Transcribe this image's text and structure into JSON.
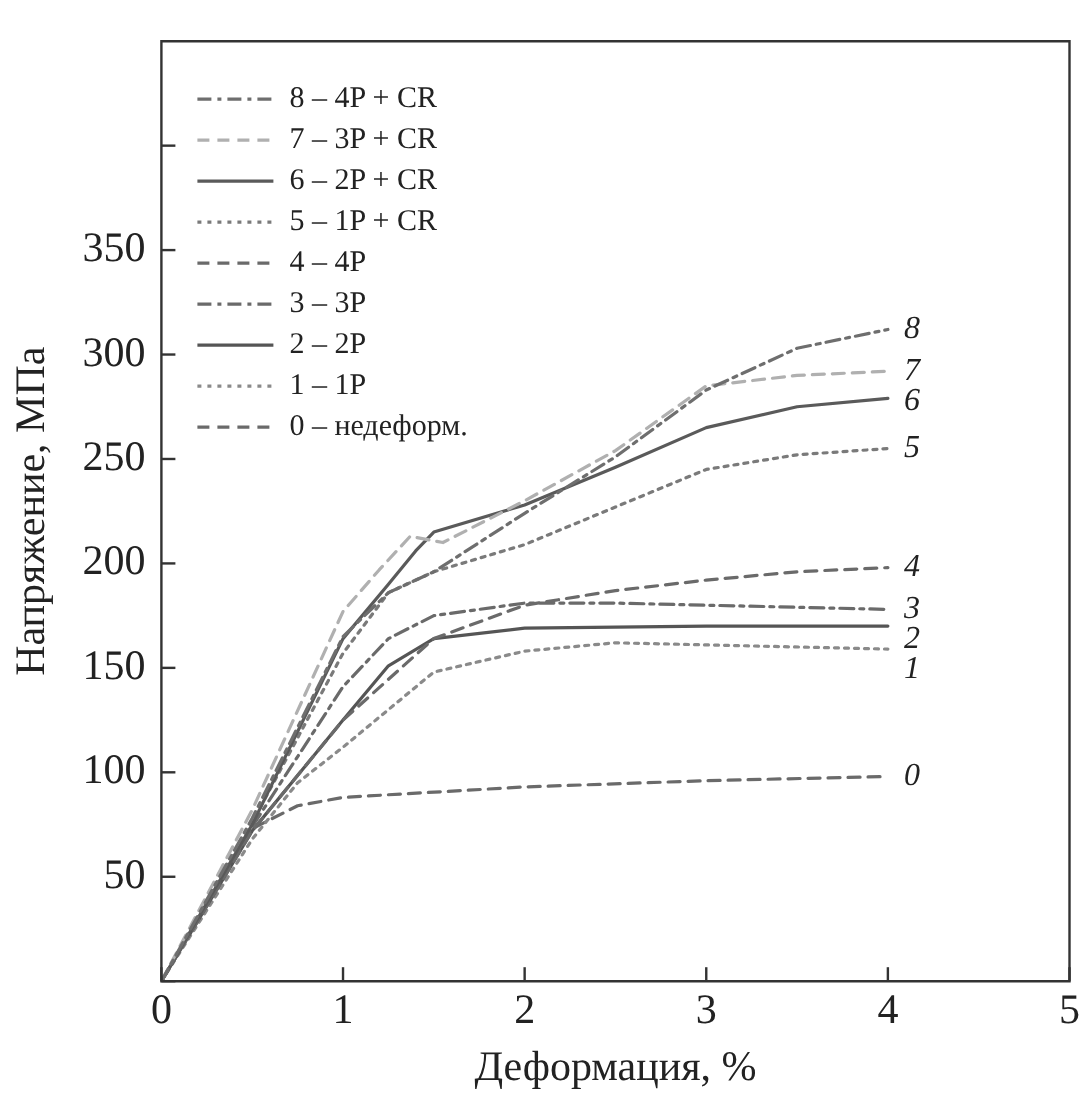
{
  "chart_data": {
    "type": "line",
    "xlabel": "Деформация, %",
    "ylabel": "Напряжение, МПа",
    "xlim": [
      0,
      5
    ],
    "xticks": [
      0,
      1,
      2,
      3,
      4,
      5
    ],
    "ylim": [
      0,
      450
    ],
    "yticks": [
      {
        "value": 0,
        "label": null
      },
      50,
      100,
      150,
      200,
      250,
      300,
      350,
      {
        "value": 400,
        "label": null
      }
    ],
    "grid": false,
    "legend": "top left",
    "marker": "none",
    "series": [
      {
        "name": "8 – 4P + CR",
        "color": "#6e6e6e",
        "line_style": "dashdot",
        "x": [
          0,
          0.5,
          1,
          1.25,
          1.5,
          2,
          2.5,
          3,
          3.5,
          4
        ],
        "values": [
          0,
          78,
          165,
          186,
          196,
          224,
          251,
          283,
          303,
          312
        ]
      },
      {
        "name": "7 – 3P + CR",
        "color": "#b0b0b0",
        "line_style": "dashed",
        "x": [
          0,
          0.5,
          1,
          1.2,
          1.37,
          1.55,
          2,
          2.5,
          3,
          3.5,
          4
        ],
        "values": [
          0,
          82,
          177,
          197,
          213,
          210,
          230,
          254,
          285,
          290,
          292
        ]
      },
      {
        "name": "6 – 2P + CR",
        "color": "#5a5a5a",
        "line_style": "solid",
        "x": [
          0,
          0.5,
          1,
          1.25,
          1.4,
          1.5,
          2,
          2.5,
          3,
          3.5,
          4
        ],
        "values": [
          0,
          75,
          164,
          190,
          206,
          215,
          228,
          246,
          265,
          275,
          279
        ]
      },
      {
        "name": "5 – 1P + CR",
        "color": "#7a7a7a",
        "line_style": "dotted",
        "x": [
          0,
          0.5,
          1,
          1.25,
          1.5,
          2,
          2.5,
          3,
          3.5,
          4
        ],
        "values": [
          0,
          76,
          157,
          186,
          196,
          209,
          227,
          245,
          252,
          255
        ]
      },
      {
        "name": "4 – 4P",
        "color": "#6a6a6a",
        "line_style": "dashed",
        "x": [
          0,
          0.5,
          1,
          1.5,
          2,
          2.5,
          3,
          3.5,
          4
        ],
        "values": [
          0,
          72,
          125,
          164,
          180,
          187,
          192,
          196,
          198
        ]
      },
      {
        "name": "3 – 3P",
        "color": "#6a6a6a",
        "line_style": "dashdot",
        "x": [
          0,
          0.5,
          1,
          1.25,
          1.5,
          2,
          2.5,
          3,
          4
        ],
        "values": [
          0,
          74,
          141,
          164,
          175,
          181,
          181,
          180,
          178
        ]
      },
      {
        "name": "2 – 2P",
        "color": "#555555",
        "line_style": "solid",
        "x": [
          0,
          0.5,
          1,
          1.25,
          1.5,
          2,
          3,
          4
        ],
        "values": [
          0,
          72,
          125,
          151,
          164,
          169,
          170,
          170
        ]
      },
      {
        "name": "1 – 1P",
        "color": "#8a8a8a",
        "line_style": "dotted",
        "x": [
          0,
          0.5,
          0.75,
          1,
          1.5,
          2,
          2.5,
          3,
          4
        ],
        "values": [
          0,
          68,
          95,
          112,
          148,
          158,
          162,
          161,
          159
        ]
      },
      {
        "name": "0 – недеформ.",
        "color": "#6a6a6a",
        "line_style": "dashed",
        "x": [
          0,
          0.5,
          0.75,
          1,
          2,
          3,
          4
        ],
        "values": [
          0,
          73,
          84,
          88,
          93,
          96,
          98
        ]
      }
    ],
    "annotations": [
      "8",
      "7",
      "6",
      "5",
      "4",
      "3",
      "2",
      "1",
      "0"
    ]
  }
}
